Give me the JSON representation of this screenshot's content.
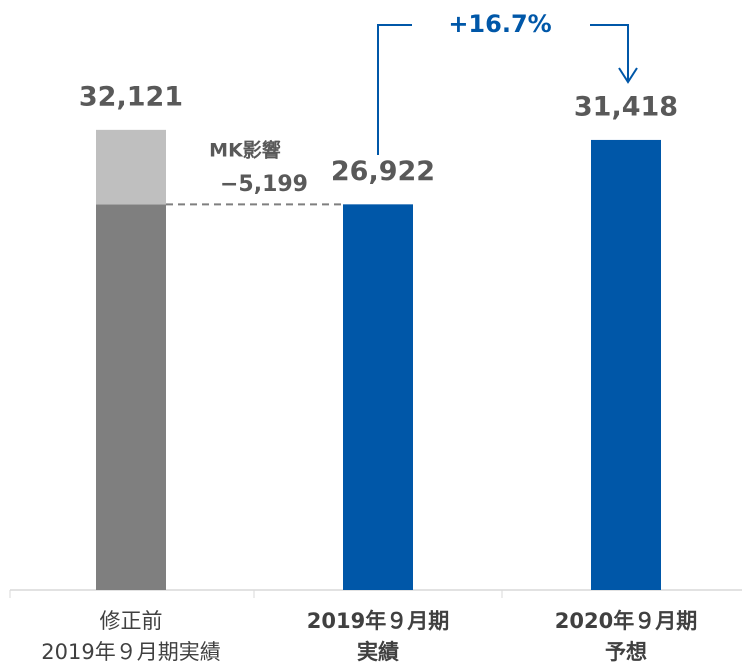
{
  "chart_data": {
    "type": "bar",
    "categories": [
      [
        "修正前",
        "2019年９月期実績"
      ],
      [
        "2019年９月期",
        "実績"
      ],
      [
        "2020年９月期",
        "予想"
      ]
    ],
    "category_bold": [
      false,
      true,
      true
    ],
    "bars": [
      {
        "segments": [
          {
            "value": 26922,
            "color": "#7f7f7f"
          },
          {
            "value": 5199,
            "color": "#bfbfbf"
          }
        ],
        "total": 32121,
        "total_label": "32,121"
      },
      {
        "segments": [
          {
            "value": 26922,
            "color": "#0057a8"
          }
        ],
        "total": 26922,
        "total_label": "26,922"
      },
      {
        "segments": [
          {
            "value": 31418,
            "color": "#0057a8"
          }
        ],
        "total": 31418,
        "total_label": "31,418"
      }
    ],
    "ylim": [
      0,
      40000
    ],
    "annotations": {
      "impact_title": "MK影響",
      "impact_value": "−5,199",
      "growth": "+16.7%"
    }
  }
}
